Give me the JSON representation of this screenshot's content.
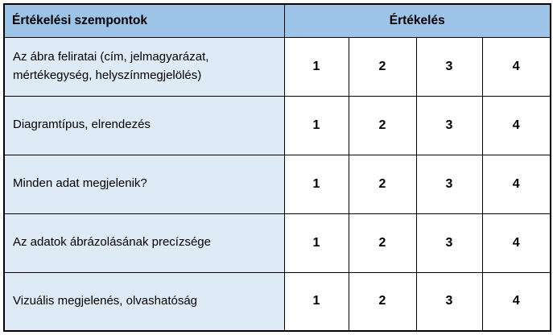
{
  "colors": {
    "header_bg": "#9DC3E6",
    "row_bg": "#DEEAF6",
    "cell_bg": "#FFFFFF",
    "border_color": "#000000",
    "text_color": "#000000",
    "page_bg": "#FFFFFF"
  },
  "table": {
    "header": {
      "criteria_label": "Értékelési szempontok",
      "rating_label": "Értékelés"
    },
    "rows": [
      {
        "label": "Az ábra feliratai (cím, jelmagyarázat, mértékegység, helyszínmegjelölés)",
        "options": [
          "1",
          "2",
          "3",
          "4"
        ]
      },
      {
        "label": "Diagramtípus, elrendezés",
        "options": [
          "1",
          "2",
          "3",
          "4"
        ]
      },
      {
        "label": "Minden adat megjelenik?",
        "options": [
          "1",
          "2",
          "3",
          "4"
        ]
      },
      {
        "label": "Az adatok ábrázolásának precízsége",
        "options": [
          "1",
          "2",
          "3",
          "4"
        ]
      },
      {
        "label": "Vizuális megjelenés, olvashatóság",
        "options": [
          "1",
          "2",
          "3",
          "4"
        ]
      }
    ]
  }
}
